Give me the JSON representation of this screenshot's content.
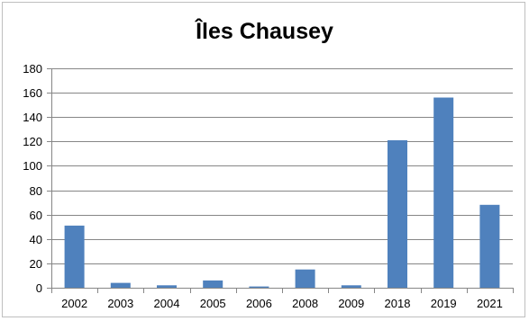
{
  "chart_data": {
    "type": "bar",
    "title": "Îles Chausey",
    "xlabel": "",
    "ylabel": "",
    "categories": [
      "2002",
      "2003",
      "2004",
      "2005",
      "2006",
      "2008",
      "2009",
      "2018",
      "2019",
      "2021"
    ],
    "values": [
      51,
      4,
      2,
      6,
      1,
      15,
      2,
      121,
      156,
      68
    ],
    "ylim": [
      0,
      180
    ],
    "yticks": [
      0,
      20,
      40,
      60,
      80,
      100,
      120,
      140,
      160,
      180
    ],
    "grid": true,
    "legend": "none",
    "bar_color": "#4f81bd",
    "grid_color": "#868686"
  }
}
